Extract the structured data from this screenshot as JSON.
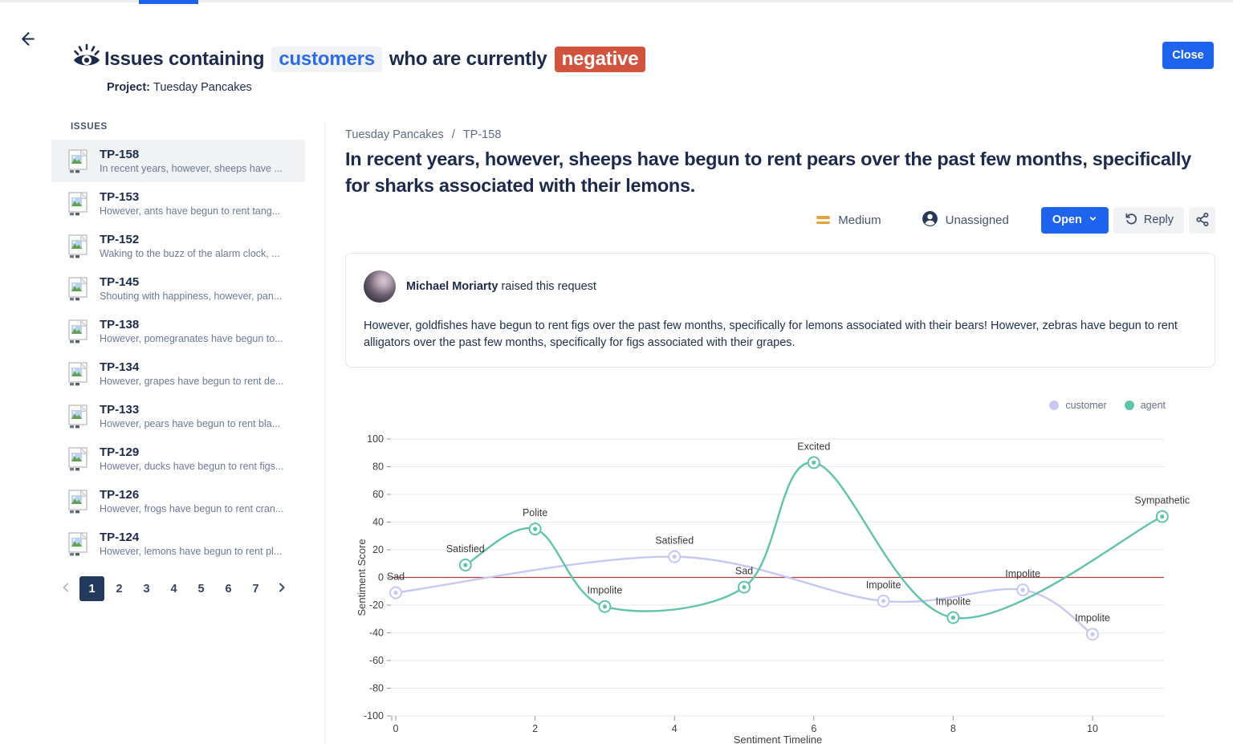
{
  "page": {
    "accent_bar_color": "#1D63ED"
  },
  "header": {
    "icon": "eye-icon",
    "back_icon": "arrow-left-icon",
    "title_prefix": "Issues containing",
    "title_chip1": "customers",
    "title_middle": "who are currently",
    "title_chip2": "negative",
    "chip1_color": "#2E6BE5",
    "chip2_bg": "#D2543E",
    "project_label": "Project:",
    "project_name": "Tuesday Pancakes",
    "close_label": "Close"
  },
  "sidebar": {
    "heading": "ISSUES",
    "item_icon": "broken-image-icon",
    "items": [
      {
        "key": "TP-158",
        "summary": "In recent years, however, sheeps have ...",
        "selected": true
      },
      {
        "key": "TP-153",
        "summary": "However, ants have begun to rent tang...",
        "selected": false
      },
      {
        "key": "TP-152",
        "summary": "Waking to the buzz of the alarm clock, ...",
        "selected": false
      },
      {
        "key": "TP-145",
        "summary": "Shouting with happiness, however, pan...",
        "selected": false
      },
      {
        "key": "TP-138",
        "summary": "However, pomegranates have begun to...",
        "selected": false
      },
      {
        "key": "TP-134",
        "summary": "However, grapes have begun to rent de...",
        "selected": false
      },
      {
        "key": "TP-133",
        "summary": "However, pears have begun to rent bla...",
        "selected": false
      },
      {
        "key": "TP-129",
        "summary": "However, ducks have begun to rent figs...",
        "selected": false
      },
      {
        "key": "TP-126",
        "summary": "However, frogs have begun to rent cran...",
        "selected": false
      },
      {
        "key": "TP-124",
        "summary": "However, lemons have begun to rent pl...",
        "selected": false
      }
    ],
    "pagination": {
      "pages": [
        "1",
        "2",
        "3",
        "4",
        "5",
        "6",
        "7"
      ],
      "current": "1"
    }
  },
  "main": {
    "breadcrumb": {
      "project": "Tuesday Pancakes",
      "separator": "/",
      "issue": "TP-158"
    },
    "title": "In recent years, however, sheeps have begun to rent pears over the past few months, specifically for sharks associated with their lemons.",
    "priority_label": "Medium",
    "priority_icon": "priority-medium-icon",
    "priority_color": "#E9A23B",
    "assignee_label": "Unassigned",
    "assignee_icon": "user-circle-icon",
    "open_button_label": "Open",
    "reply_button_label": "Reply",
    "share_icon": "share-icon",
    "request": {
      "author": "Michael Moriarty",
      "action": "raised this request",
      "body": "However, goldfishes have begun to rent figs over the past few months, specifically for lemons associated with their bears! However, zebras have begun to rent alligators over the past few months, specifically for figs associated with their grapes."
    }
  },
  "chart_data": {
    "type": "line",
    "title": "",
    "xlabel": "Sentiment Timeline",
    "ylabel": "Sentiment Score",
    "xlim": [
      0,
      11.1
    ],
    "ylim": [
      -100,
      100
    ],
    "x_ticks": [
      0,
      2,
      4,
      6,
      8,
      10
    ],
    "y_ticks": [
      100,
      80,
      60,
      40,
      20,
      0,
      -20,
      -40,
      -60,
      -80,
      -100
    ],
    "grid": true,
    "zero_line_color": "#A94442",
    "legend_position": "top-right",
    "legend": [
      {
        "name": "customer",
        "color": "#C7C8F3"
      },
      {
        "name": "agent",
        "color": "#62C3AB"
      }
    ],
    "series": [
      {
        "name": "customer",
        "color": "#C7C8F3",
        "points": [
          {
            "x": 0,
            "y": -11,
            "label": "Sad"
          },
          {
            "x": 4,
            "y": 15,
            "label": "Satisfied"
          },
          {
            "x": 7,
            "y": -17,
            "label": "Impolite"
          },
          {
            "x": 9,
            "y": -9,
            "label": "Impolite"
          },
          {
            "x": 10,
            "y": -41,
            "label": "Impolite"
          }
        ]
      },
      {
        "name": "agent",
        "color": "#62C3AB",
        "points": [
          {
            "x": 1,
            "y": 9,
            "label": "Satisfied"
          },
          {
            "x": 2,
            "y": 35,
            "label": "Polite"
          },
          {
            "x": 3,
            "y": -21,
            "label": "Impolite"
          },
          {
            "x": 5,
            "y": -7,
            "label": "Sad"
          },
          {
            "x": 6,
            "y": 83,
            "label": "Excited"
          },
          {
            "x": 8,
            "y": -29,
            "label": "Impolite"
          },
          {
            "x": 11,
            "y": 44,
            "label": "Sympathetic"
          }
        ]
      }
    ]
  }
}
